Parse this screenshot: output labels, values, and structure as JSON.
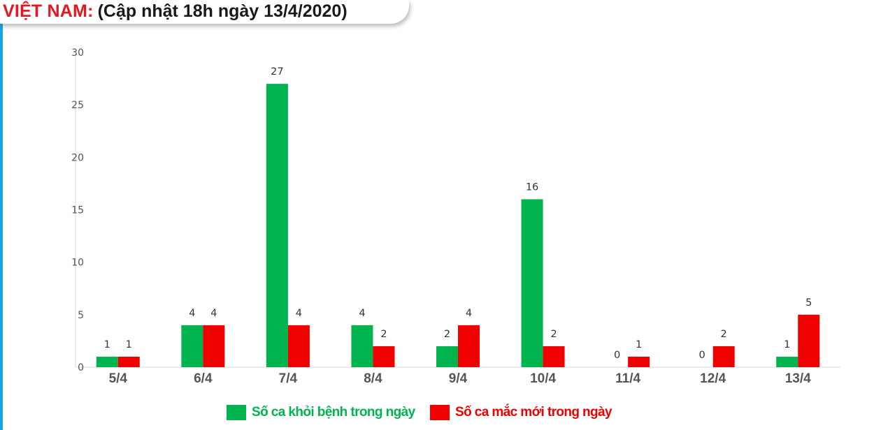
{
  "header": {
    "country": "VIỆT NAM:",
    "update": "(Cập nhật 18h ngày 13/4/2020)"
  },
  "colors": {
    "recovered": "#00b450",
    "new_cases": "#f10000",
    "header_red": "#e8171f",
    "left_rule": "#1ba3dc"
  },
  "chart_data": {
    "type": "bar",
    "categories": [
      "5/4",
      "6/4",
      "7/4",
      "8/4",
      "9/4",
      "10/4",
      "11/4",
      "12/4",
      "13/4"
    ],
    "series": [
      {
        "name": "Số ca khỏi bệnh trong ngày",
        "values": [
          1,
          4,
          27,
          4,
          2,
          16,
          0,
          0,
          1
        ]
      },
      {
        "name": "Số ca mắc mới  trong ngày",
        "values": [
          1,
          4,
          4,
          2,
          4,
          2,
          1,
          2,
          5
        ]
      }
    ],
    "ylim": [
      0,
      30
    ],
    "yticks": [
      0,
      5,
      10,
      15,
      20,
      25,
      30
    ],
    "data_labels": true,
    "grid": false,
    "legend_position": "bottom"
  }
}
